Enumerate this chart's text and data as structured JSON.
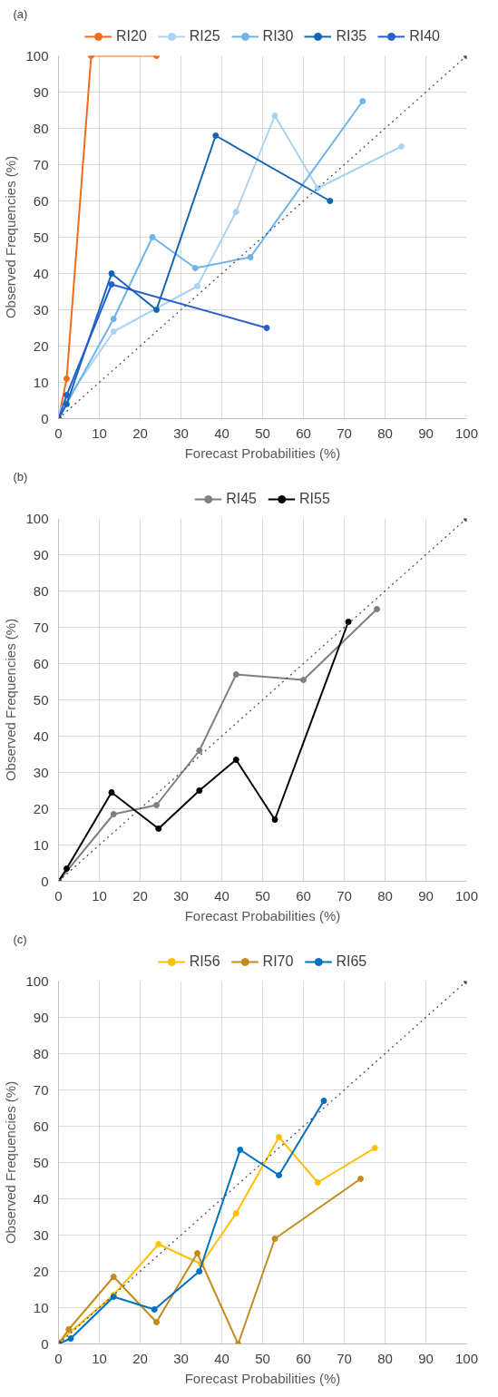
{
  "chart_data": [
    {
      "type": "line",
      "title": "(a)",
      "xlabel": "Forecast Probabilities (%)",
      "ylabel": "Observed Frequencies (%)",
      "xlim": [
        0,
        100
      ],
      "ylim": [
        0,
        100
      ],
      "xticks": [
        0,
        10,
        20,
        30,
        40,
        50,
        60,
        70,
        80,
        90,
        100
      ],
      "yticks": [
        0,
        10,
        20,
        30,
        40,
        50,
        60,
        70,
        80,
        90,
        100
      ],
      "grid": true,
      "legend": "top",
      "marker": "circle",
      "series": [
        {
          "name": "RI20",
          "color": "#f26b1d",
          "x": [
            0,
            2,
            8,
            24
          ],
          "values": [
            0,
            11,
            100,
            100
          ]
        },
        {
          "name": "RI25",
          "color": "#a9d3f2",
          "x": [
            0,
            13.5,
            34,
            43.5,
            53,
            63.5,
            84
          ],
          "values": [
            2,
            24,
            36.5,
            57,
            83.5,
            63.5,
            75
          ]
        },
        {
          "name": "RI30",
          "color": "#6fb3e8",
          "x": [
            0,
            13.5,
            23,
            33.5,
            47,
            74.5
          ],
          "values": [
            0,
            27.5,
            50,
            41.5,
            44.5,
            87.5
          ]
        },
        {
          "name": "RI35",
          "color": "#1565b5",
          "x": [
            0,
            2,
            13,
            24,
            38.5,
            66.5
          ],
          "values": [
            0,
            4,
            40,
            30,
            78,
            60
          ]
        },
        {
          "name": "RI40",
          "color": "#2a5fd0",
          "x": [
            0,
            2,
            13,
            51
          ],
          "values": [
            0,
            6.5,
            37,
            25
          ]
        },
        {
          "color": "#3a4660",
          "line_style": "dotted",
          "x": [
            0,
            100
          ],
          "values": [
            0,
            100
          ]
        }
      ]
    },
    {
      "type": "line",
      "title": "(b)",
      "xlabel": "Forecast Probabilities (%)",
      "ylabel": "Observed Frequencies (%)",
      "xlim": [
        0,
        100
      ],
      "ylim": [
        0,
        100
      ],
      "xticks": [
        0,
        10,
        20,
        30,
        40,
        50,
        60,
        70,
        80,
        90,
        100
      ],
      "yticks": [
        0,
        10,
        20,
        30,
        40,
        50,
        60,
        70,
        80,
        90,
        100
      ],
      "grid": true,
      "legend": "top",
      "marker": "circle",
      "series": [
        {
          "name": "RI45",
          "color": "#7f7f7f",
          "x": [
            0,
            13.5,
            24,
            34.5,
            43.5,
            60,
            78
          ],
          "values": [
            0,
            18.5,
            21,
            36,
            57,
            55.5,
            75
          ]
        },
        {
          "name": "RI55",
          "color": "#000000",
          "x": [
            0,
            2,
            13,
            24.5,
            34.5,
            43.5,
            53,
            71
          ],
          "values": [
            0,
            3.5,
            24.5,
            14.5,
            25,
            33.5,
            17,
            71.5
          ]
        },
        {
          "color": "#3a4660",
          "line_style": "dotted",
          "x": [
            0,
            100
          ],
          "values": [
            0,
            100
          ]
        }
      ]
    },
    {
      "type": "line",
      "title": "(c)",
      "xlabel": "Forecast Probabilities (%)",
      "ylabel": "Observed Frequencies (%)",
      "xlim": [
        0,
        100
      ],
      "ylim": [
        0,
        100
      ],
      "xticks": [
        0,
        10,
        20,
        30,
        40,
        50,
        60,
        70,
        80,
        90,
        100
      ],
      "yticks": [
        0,
        10,
        20,
        30,
        40,
        50,
        60,
        70,
        80,
        90,
        100
      ],
      "grid": true,
      "legend": "top",
      "marker": "circle",
      "series": [
        {
          "name": "RI56",
          "color": "#ffc000",
          "x": [
            0,
            13.5,
            24.5,
            35,
            43.5,
            54,
            63.5,
            77.5
          ],
          "values": [
            0.5,
            13.5,
            27.5,
            22,
            36,
            57,
            44.5,
            54
          ]
        },
        {
          "name": "RI70",
          "color": "#c38a1c",
          "x": [
            0,
            2.5,
            13.5,
            24,
            34,
            44,
            53,
            74
          ],
          "values": [
            0,
            4,
            18.5,
            6,
            25,
            0,
            29,
            45.5
          ]
        },
        {
          "name": "RI65",
          "color": "#0070c0",
          "x": [
            0,
            3,
            13.5,
            23.5,
            34.5,
            44.5,
            54,
            65
          ],
          "values": [
            0,
            1.5,
            13,
            9.5,
            20,
            53.5,
            46.5,
            67
          ]
        },
        {
          "color": "#3a4660",
          "line_style": "dotted",
          "x": [
            0,
            100
          ],
          "values": [
            0,
            100
          ]
        }
      ]
    }
  ]
}
